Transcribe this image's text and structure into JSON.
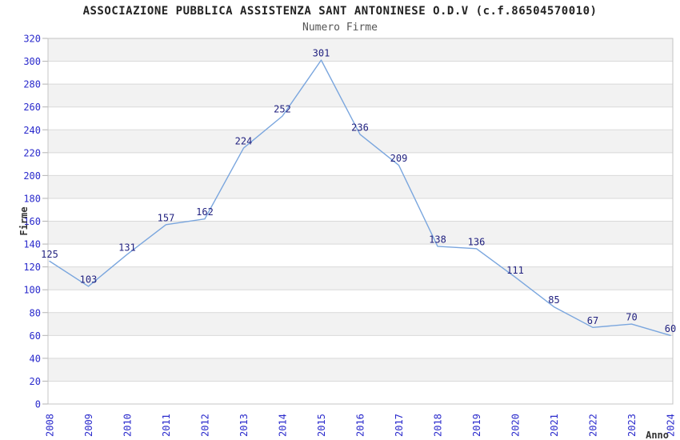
{
  "chart_data": {
    "type": "line",
    "title": "ASSOCIAZIONE PUBBLICA ASSISTENZA SANT ANTONINESE O.D.V (c.f.86504570010)",
    "subtitle": "Numero Firme",
    "xlabel": "Anno",
    "ylabel": "Firme",
    "categories": [
      "2008",
      "2009",
      "2010",
      "2011",
      "2012",
      "2013",
      "2014",
      "2015",
      "2016",
      "2017",
      "2018",
      "2019",
      "2020",
      "2021",
      "2022",
      "2023",
      "2024"
    ],
    "series": [
      {
        "name": "Numero Firme",
        "values": [
          125,
          103,
          131,
          157,
          162,
          224,
          252,
          301,
          236,
          209,
          138,
          136,
          111,
          85,
          67,
          70,
          60
        ]
      }
    ],
    "ylim": [
      0,
      320
    ],
    "ytick_step": 20,
    "yticks": [
      0,
      20,
      40,
      60,
      80,
      100,
      120,
      140,
      160,
      180,
      200,
      220,
      240,
      260,
      280,
      300,
      320
    ],
    "grid": "horizontal gridlines with alternating background bands every 20 units",
    "legend": "none",
    "data_labels_visible": true,
    "x_labels_rotation": "vertical",
    "colors": {
      "line": "#7aa6de",
      "data_label": "#222280",
      "tick_label": "#2a2acc",
      "band": "#f2f2f2",
      "gridline": "#d9d9d9",
      "tick_mark": "#b3b3b3",
      "plot_border": "#c4c4c4",
      "title": "#222222",
      "subtitle": "#555555",
      "axis_label": "#333333"
    }
  }
}
